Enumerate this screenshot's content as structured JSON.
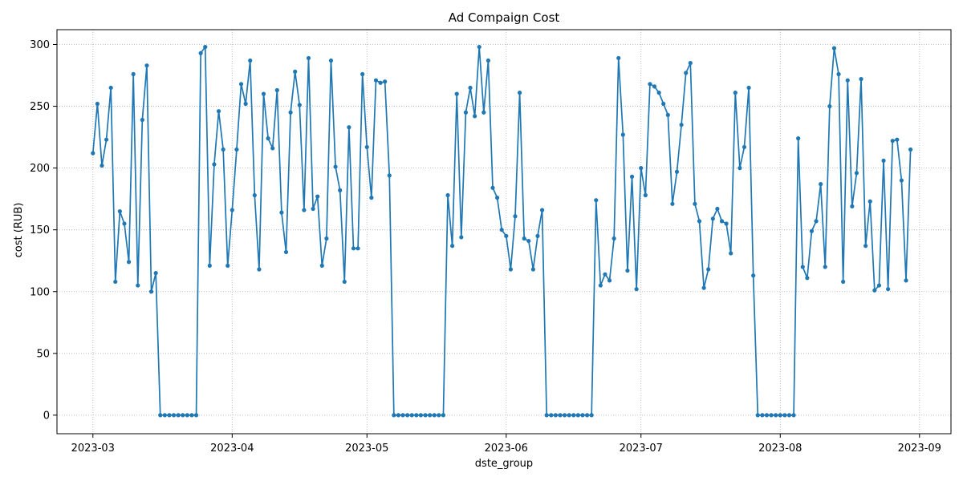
{
  "chart_data": {
    "type": "line",
    "title": "Ad Compaign Cost",
    "xlabel": "dste_group",
    "ylabel": "cost (RUB)",
    "ylim": [
      -15,
      312
    ],
    "xlim": [
      "2023-02-21",
      "2023-09-08"
    ],
    "grid": true,
    "grid_style": "dotted",
    "line_color": "#1f77b4",
    "marker": "circle",
    "x_ticks": [
      "2023-03-01",
      "2023-04-01",
      "2023-05-01",
      "2023-06-01",
      "2023-07-01",
      "2023-08-01",
      "2023-09-01"
    ],
    "x_tick_labels": [
      "2023-03",
      "2023-04",
      "2023-05",
      "2023-06",
      "2023-07",
      "2023-08",
      "2023-09"
    ],
    "y_ticks": [
      0,
      50,
      100,
      150,
      200,
      250,
      300
    ],
    "series": [
      {
        "start_date": "2023-03-01",
        "values": [
          212,
          252,
          202,
          223,
          265,
          108,
          165,
          155,
          124,
          276,
          105,
          239,
          283,
          100,
          115,
          0,
          0,
          0,
          0,
          0,
          0,
          0,
          0,
          0,
          293,
          298,
          121,
          203,
          246,
          215,
          121,
          166,
          215,
          268,
          252,
          287,
          178,
          118,
          260,
          224,
          216,
          263,
          164,
          132,
          245,
          278,
          251,
          166,
          289,
          167,
          177,
          121,
          143,
          287,
          201,
          182,
          108,
          233,
          135,
          135,
          276,
          217,
          176,
          271,
          269,
          270,
          194,
          0,
          0,
          0,
          0,
          0,
          0,
          0,
          0,
          0,
          0,
          0,
          0,
          178,
          137,
          260,
          144,
          245,
          265,
          242,
          298,
          245,
          287,
          184,
          176,
          150,
          145,
          118,
          161,
          261,
          143,
          141,
          118,
          145,
          166,
          0,
          0,
          0,
          0,
          0,
          0,
          0,
          0,
          0,
          0,
          0,
          174,
          105,
          114,
          109,
          143,
          289,
          227,
          117,
          193,
          102,
          200,
          178,
          268,
          266,
          261,
          252,
          243,
          171,
          197,
          235,
          277,
          285,
          171,
          157,
          103,
          118,
          159,
          167,
          157,
          155,
          131,
          261,
          200,
          217,
          265,
          113,
          0,
          0,
          0,
          0,
          0,
          0,
          0,
          0,
          0,
          224,
          120,
          111,
          149,
          157,
          187,
          120,
          250,
          297,
          276,
          108,
          271,
          169,
          196,
          272,
          137,
          173,
          101,
          105,
          206,
          102,
          222,
          223,
          190,
          109,
          215
        ]
      }
    ]
  }
}
